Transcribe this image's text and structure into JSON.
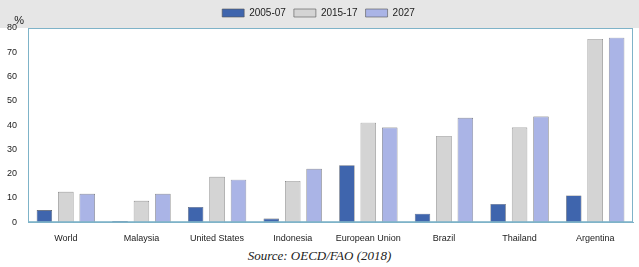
{
  "chart_data": {
    "type": "bar",
    "y_label": "%",
    "source": "Source: OECD/FAO (2018)",
    "categories": [
      "World",
      "Malaysia",
      "United States",
      "Indonesia",
      "European Union",
      "Brazil",
      "Thailand",
      "Argentina"
    ],
    "series": [
      {
        "name": "2005-07",
        "color": "#3f65ad",
        "values": [
          5,
          0.5,
          6.3,
          1.5,
          23.5,
          3.5,
          7.5,
          11
        ]
      },
      {
        "name": "2015-17",
        "color": "#d4d4d4",
        "values": [
          12.5,
          8.8,
          18.7,
          17,
          41,
          35.5,
          39,
          75.5
        ]
      },
      {
        "name": "2027",
        "color": "#aab4e6",
        "values": [
          11.7,
          11.7,
          17.5,
          22,
          39,
          43,
          43.5,
          76
        ]
      }
    ],
    "ylim": [
      0,
      80
    ],
    "yticks": [
      0,
      10,
      20,
      30,
      40,
      50,
      60,
      70,
      80
    ],
    "grid": false,
    "legend": "top"
  }
}
